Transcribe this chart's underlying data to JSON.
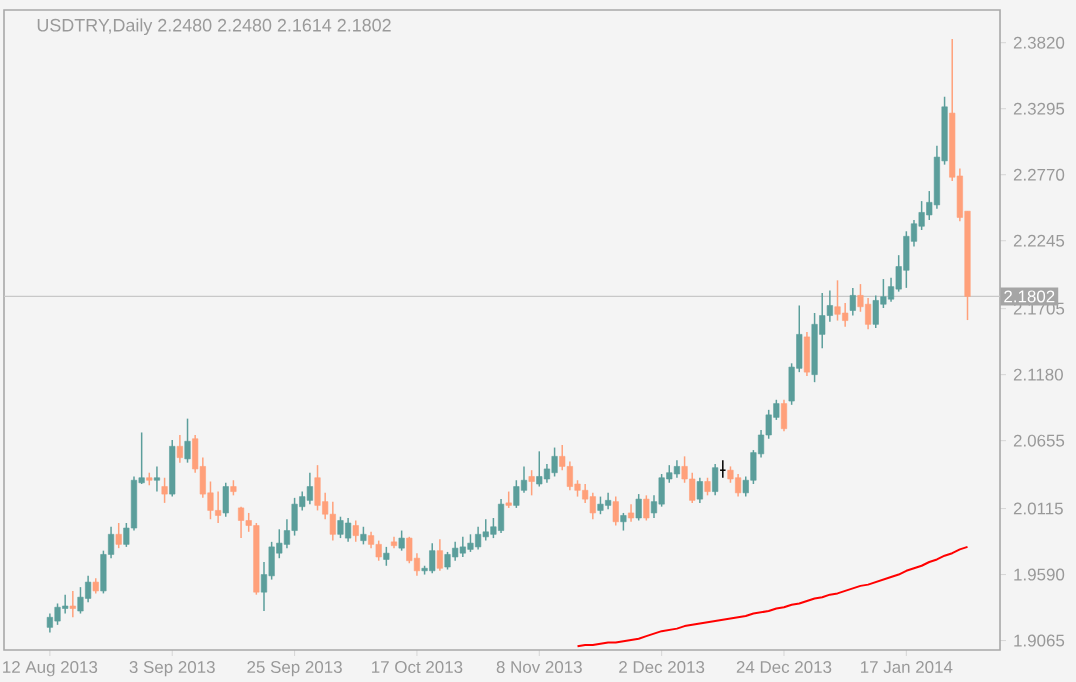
{
  "chart_data": {
    "type": "candlestick",
    "title": "USDTRY,Daily  2.2480 2.2480 2.1614 2.1802",
    "categories": [
      "12 Aug 2013",
      null,
      null,
      null,
      null,
      null,
      null,
      null,
      null,
      null,
      null,
      null,
      null,
      null,
      null,
      null,
      "3 Sep 2013",
      null,
      null,
      null,
      null,
      null,
      null,
      null,
      null,
      null,
      null,
      null,
      null,
      null,
      null,
      null,
      "25 Sep 2013",
      null,
      null,
      null,
      null,
      null,
      null,
      null,
      null,
      null,
      null,
      null,
      null,
      null,
      null,
      null,
      "17 Oct 2013",
      null,
      null,
      null,
      null,
      null,
      null,
      null,
      null,
      null,
      null,
      null,
      null,
      null,
      null,
      null,
      "8 Nov 2013",
      null,
      null,
      null,
      null,
      null,
      null,
      null,
      null,
      null,
      null,
      null,
      null,
      null,
      null,
      null,
      "2 Dec 2013",
      null,
      null,
      null,
      null,
      null,
      null,
      null,
      null,
      null,
      null,
      null,
      null,
      null,
      null,
      null,
      "24 Dec 2013",
      null,
      null,
      null,
      null,
      null,
      null,
      null,
      null,
      null,
      null,
      null,
      null,
      null,
      null,
      null,
      "17 Jan 2014",
      null,
      null,
      null,
      null,
      null,
      null,
      null,
      null
    ],
    "ohlc": [
      [
        1.917,
        1.928,
        1.913,
        1.925
      ],
      [
        1.922,
        1.936,
        1.919,
        1.933
      ],
      [
        1.932,
        1.943,
        1.928,
        1.934
      ],
      [
        1.934,
        1.946,
        1.925,
        1.932
      ],
      [
        1.93,
        1.949,
        1.928,
        1.941
      ],
      [
        1.94,
        1.958,
        1.937,
        1.953
      ],
      [
        1.953,
        1.956,
        1.944,
        1.946
      ],
      [
        1.946,
        1.978,
        1.944,
        1.975
      ],
      [
        1.975,
        1.997,
        1.972,
        1.991
      ],
      [
        1.991,
        2.0,
        1.98,
        1.983
      ],
      [
        1.983,
        2.0,
        1.981,
        1.996
      ],
      [
        1.996,
        2.037,
        1.994,
        2.034
      ],
      [
        2.032,
        2.072,
        2.031,
        2.036
      ],
      [
        2.036,
        2.04,
        2.03,
        2.034
      ],
      [
        2.034,
        2.045,
        2.025,
        2.036
      ],
      [
        2.029,
        2.036,
        2.016,
        2.023
      ],
      [
        2.023,
        2.066,
        2.021,
        2.061
      ],
      [
        2.061,
        2.07,
        2.048,
        2.052
      ],
      [
        2.051,
        2.083,
        2.048,
        2.065
      ],
      [
        2.067,
        2.07,
        2.04,
        2.043
      ],
      [
        2.045,
        2.052,
        2.02,
        2.023
      ],
      [
        2.024,
        2.033,
        2.003,
        2.01
      ],
      [
        2.01,
        2.025,
        2.0,
        2.006
      ],
      [
        2.008,
        2.032,
        2.005,
        2.029
      ],
      [
        2.029,
        2.034,
        2.022,
        2.025
      ],
      [
        2.012,
        2.013,
        1.988,
        2.002
      ],
      [
        2.002,
        2.008,
        1.993,
        1.998
      ],
      [
        1.998,
        2.0,
        1.943,
        1.945
      ],
      [
        1.945,
        1.969,
        1.93,
        1.959
      ],
      [
        1.958,
        1.985,
        1.955,
        1.981
      ],
      [
        1.976,
        1.995,
        1.972,
        1.984
      ],
      [
        1.983,
        2.003,
        1.98,
        1.994
      ],
      [
        1.994,
        2.02,
        1.99,
        2.015
      ],
      [
        2.013,
        2.025,
        2.01,
        2.021
      ],
      [
        2.018,
        2.04,
        2.015,
        2.029
      ],
      [
        2.036,
        2.046,
        2.01,
        2.014
      ],
      [
        2.017,
        2.024,
        2.003,
        2.007
      ],
      [
        2.007,
        2.017,
        1.986,
        1.991
      ],
      [
        1.991,
        2.005,
        1.988,
        2.002
      ],
      [
        1.988,
        2.004,
        1.985,
        2.0
      ],
      [
        1.998,
        2.002,
        1.985,
        1.99
      ],
      [
        1.986,
        1.997,
        1.983,
        1.991
      ],
      [
        1.99,
        1.993,
        1.98,
        1.983
      ],
      [
        1.983,
        1.986,
        1.97,
        1.973
      ],
      [
        1.971,
        1.981,
        1.966,
        1.976
      ],
      [
        1.985,
        1.989,
        1.98,
        1.982
      ],
      [
        1.98,
        1.994,
        1.978,
        1.988
      ],
      [
        1.988,
        1.989,
        1.968,
        1.97
      ],
      [
        1.972,
        1.976,
        1.958,
        1.962
      ],
      [
        1.962,
        1.966,
        1.959,
        1.964
      ],
      [
        1.962,
        1.984,
        1.96,
        1.978
      ],
      [
        1.978,
        1.987,
        1.962,
        1.964
      ],
      [
        1.965,
        1.977,
        1.963,
        1.975
      ],
      [
        1.973,
        1.985,
        1.97,
        1.98
      ],
      [
        1.976,
        1.989,
        1.973,
        1.981
      ],
      [
        1.979,
        1.991,
        1.977,
        1.984
      ],
      [
        1.981,
        1.997,
        1.979,
        1.991
      ],
      [
        1.989,
        2.003,
        1.986,
        1.993
      ],
      [
        1.991,
        2.004,
        1.988,
        1.997
      ],
      [
        1.994,
        2.019,
        1.992,
        2.015
      ],
      [
        2.016,
        2.025,
        2.012,
        2.014
      ],
      [
        2.014,
        2.034,
        2.012,
        2.029
      ],
      [
        2.026,
        2.045,
        2.024,
        2.034
      ],
      [
        2.037,
        2.042,
        2.022,
        2.033
      ],
      [
        2.031,
        2.057,
        2.029,
        2.037
      ],
      [
        2.035,
        2.047,
        2.032,
        2.043
      ],
      [
        2.04,
        2.06,
        2.037,
        2.053
      ],
      [
        2.053,
        2.062,
        2.042,
        2.045
      ],
      [
        2.045,
        2.049,
        2.026,
        2.029
      ],
      [
        2.031,
        2.034,
        2.021,
        2.026
      ],
      [
        2.026,
        2.031,
        2.016,
        2.019
      ],
      [
        2.021,
        2.024,
        2.003,
        2.008
      ],
      [
        2.01,
        2.021,
        2.007,
        2.015
      ],
      [
        2.014,
        2.024,
        2.011,
        2.018
      ],
      [
        2.017,
        2.021,
        1.998,
        2.001
      ],
      [
        2.001,
        2.008,
        1.994,
        2.006
      ],
      [
        2.008,
        2.015,
        2.001,
        2.004
      ],
      [
        2.004,
        2.023,
        2.002,
        2.019
      ],
      [
        2.019,
        2.022,
        2.002,
        2.004
      ],
      [
        2.008,
        2.022,
        2.004,
        2.017
      ],
      [
        2.015,
        2.039,
        2.013,
        2.036
      ],
      [
        2.035,
        2.046,
        2.032,
        2.04
      ],
      [
        2.039,
        2.05,
        2.036,
        2.045
      ],
      [
        2.045,
        2.053,
        2.032,
        2.035
      ],
      [
        2.035,
        2.04,
        2.016,
        2.018
      ],
      [
        2.019,
        2.036,
        2.016,
        2.033
      ],
      [
        2.033,
        2.036,
        2.022,
        2.025
      ],
      [
        2.025,
        2.047,
        2.022,
        2.044
      ],
      [
        2.042,
        2.05,
        2.036,
        2.042
      ],
      [
        2.042,
        2.045,
        2.032,
        2.035
      ],
      [
        2.036,
        2.039,
        2.021,
        2.024
      ],
      [
        2.024,
        2.037,
        2.021,
        2.034
      ],
      [
        2.034,
        2.058,
        2.031,
        2.056
      ],
      [
        2.055,
        2.074,
        2.052,
        2.07
      ],
      [
        2.07,
        2.09,
        2.067,
        2.086
      ],
      [
        2.084,
        2.098,
        2.082,
        2.095
      ],
      [
        2.095,
        2.098,
        2.073,
        2.075
      ],
      [
        2.097,
        2.127,
        2.094,
        2.124
      ],
      [
        2.123,
        2.173,
        2.12,
        2.15
      ],
      [
        2.148,
        2.152,
        2.117,
        2.12
      ],
      [
        2.118,
        2.167,
        2.112,
        2.158
      ],
      [
        2.15,
        2.183,
        2.139,
        2.165
      ],
      [
        2.165,
        2.185,
        2.16,
        2.173
      ],
      [
        2.172,
        2.193,
        2.161,
        2.166
      ],
      [
        2.167,
        2.175,
        2.156,
        2.161
      ],
      [
        2.169,
        2.187,
        2.165,
        2.181
      ],
      [
        2.181,
        2.19,
        2.168,
        2.172
      ],
      [
        2.174,
        2.179,
        2.154,
        2.158
      ],
      [
        2.158,
        2.181,
        2.155,
        2.177
      ],
      [
        2.174,
        2.194,
        2.171,
        2.18
      ],
      [
        2.178,
        2.195,
        2.176,
        2.188
      ],
      [
        2.186,
        2.213,
        2.184,
        2.204
      ],
      [
        2.201,
        2.232,
        2.187,
        2.228
      ],
      [
        2.224,
        2.241,
        2.22,
        2.238
      ],
      [
        2.236,
        2.256,
        2.233,
        2.247
      ],
      [
        2.245,
        2.264,
        2.241,
        2.255
      ],
      [
        2.253,
        2.3,
        2.25,
        2.291
      ],
      [
        2.288,
        2.339,
        2.285,
        2.331
      ],
      [
        2.326,
        2.385,
        2.272,
        2.275
      ],
      [
        2.276,
        2.282,
        2.24,
        2.243
      ],
      [
        2.248,
        2.248,
        2.1614,
        2.1802
      ]
    ],
    "colors": [
      "#5b9e9b",
      "#5b9e9b",
      "#5b9e9b",
      "#ffa07a",
      "#5b9e9b",
      "#5b9e9b",
      "#ffa07a",
      "#5b9e9b",
      "#5b9e9b",
      "#ffa07a",
      "#5b9e9b",
      "#5b9e9b",
      "#5b9e9b",
      "#ffa07a",
      "#5b9e9b",
      "#ffa07a",
      "#5b9e9b",
      "#ffa07a",
      "#5b9e9b",
      "#ffa07a",
      "#ffa07a",
      "#ffa07a",
      "#ffa07a",
      "#5b9e9b",
      "#ffa07a",
      "#ffa07a",
      "#ffa07a",
      "#ffa07a",
      "#5b9e9b",
      "#5b9e9b",
      "#5b9e9b",
      "#5b9e9b",
      "#5b9e9b",
      "#5b9e9b",
      "#5b9e9b",
      "#ffa07a",
      "#ffa07a",
      "#ffa07a",
      "#5b9e9b",
      "#5b9e9b",
      "#ffa07a",
      "#5b9e9b",
      "#ffa07a",
      "#ffa07a",
      "#5b9e9b",
      "#ffa07a",
      "#5b9e9b",
      "#ffa07a",
      "#ffa07a",
      "#5b9e9b",
      "#5b9e9b",
      "#ffa07a",
      "#5b9e9b",
      "#5b9e9b",
      "#5b9e9b",
      "#5b9e9b",
      "#5b9e9b",
      "#5b9e9b",
      "#5b9e9b",
      "#5b9e9b",
      "#ffa07a",
      "#5b9e9b",
      "#5b9e9b",
      "#ffa07a",
      "#5b9e9b",
      "#5b9e9b",
      "#5b9e9b",
      "#ffa07a",
      "#ffa07a",
      "#ffa07a",
      "#ffa07a",
      "#ffa07a",
      "#5b9e9b",
      "#5b9e9b",
      "#ffa07a",
      "#5b9e9b",
      "#ffa07a",
      "#5b9e9b",
      "#ffa07a",
      "#5b9e9b",
      "#5b9e9b",
      "#5b9e9b",
      "#5b9e9b",
      "#ffa07a",
      "#ffa07a",
      "#5b9e9b",
      "#ffa07a",
      "#5b9e9b",
      "#000000",
      "#ffa07a",
      "#ffa07a",
      "#5b9e9b",
      "#5b9e9b",
      "#5b9e9b",
      "#5b9e9b",
      "#5b9e9b",
      "#ffa07a",
      "#5b9e9b",
      "#5b9e9b",
      "#ffa07a",
      "#5b9e9b",
      "#5b9e9b",
      "#5b9e9b",
      "#ffa07a",
      "#ffa07a",
      "#5b9e9b",
      "#ffa07a",
      "#ffa07a",
      "#5b9e9b",
      "#5b9e9b",
      "#5b9e9b",
      "#5b9e9b",
      "#5b9e9b",
      "#5b9e9b",
      "#5b9e9b",
      "#5b9e9b",
      "#5b9e9b",
      "#5b9e9b",
      "#ffa07a",
      "#ffa07a",
      "#ffa07a"
    ],
    "series": [
      {
        "type": "line",
        "color": "#ff0000",
        "values": [
          null,
          null,
          null,
          null,
          null,
          null,
          null,
          null,
          null,
          null,
          null,
          null,
          null,
          null,
          null,
          null,
          null,
          null,
          null,
          null,
          null,
          null,
          null,
          null,
          null,
          null,
          null,
          null,
          null,
          null,
          null,
          null,
          null,
          null,
          null,
          null,
          null,
          null,
          null,
          null,
          null,
          null,
          null,
          null,
          null,
          null,
          null,
          null,
          null,
          null,
          null,
          null,
          null,
          null,
          null,
          null,
          null,
          null,
          null,
          null,
          null,
          null,
          null,
          null,
          null,
          null,
          null,
          null,
          null,
          1.902,
          1.903,
          1.903,
          1.904,
          1.905,
          1.905,
          1.906,
          1.907,
          1.908,
          1.91,
          1.912,
          1.914,
          1.915,
          1.916,
          1.918,
          1.919,
          1.92,
          1.921,
          1.922,
          1.923,
          1.924,
          1.925,
          1.926,
          1.928,
          1.929,
          1.93,
          1.932,
          1.933,
          1.935,
          1.936,
          1.938,
          1.94,
          1.941,
          1.943,
          1.944,
          1.946,
          1.948,
          1.95,
          1.951,
          1.953,
          1.955,
          1.957,
          1.959,
          1.962,
          1.964,
          1.966,
          1.969,
          1.971,
          1.974,
          1.976,
          1.979,
          1.981
        ]
      }
    ],
    "ylim": [
      1.899,
      2.408
    ],
    "yticks": [
      {
        "value": 2.382,
        "label": "2.3820"
      },
      2.3295,
      {
        "value": 2.277,
        "label": "2.2770"
      },
      2.2245,
      2.1705,
      {
        "value": 2.118,
        "label": "2.1180"
      },
      2.0655,
      2.0115,
      {
        "value": 1.959,
        "label": "1.9590"
      },
      1.9065
    ],
    "ref_lines": [
      {
        "axis": "y",
        "value": 2.1802,
        "label": "2.1802",
        "color": "#c8c8c8"
      }
    ]
  }
}
